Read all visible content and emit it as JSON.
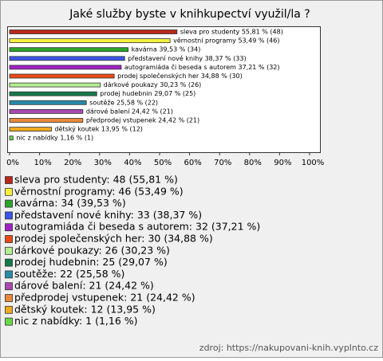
{
  "chart_data": {
    "type": "bar",
    "orientation": "horizontal",
    "title": "Jaké služby byste v knihkupectví využil/la ?",
    "categories": [
      "sleva pro studenty",
      "věrnostní programy",
      "kavárna",
      "představení nové knihy",
      "autogramiáda či beseda s autorem",
      "prodej společenských her",
      "dárkové poukazy",
      "prodej hudebnin",
      "soutěže",
      "dárové balení",
      "předprodej vstupenek",
      "dětský koutek",
      "nic z nabídky"
    ],
    "values": [
      55.81,
      53.49,
      39.53,
      38.37,
      37.21,
      34.88,
      30.23,
      29.07,
      25.58,
      24.42,
      24.42,
      13.95,
      1.16
    ],
    "value_labels": [
      "sleva pro studenty 55,81 % (48)",
      "věrnostní programy 53,49 % (46)",
      "kavárna 39,53 % (34)",
      "představení nové knihy 38,37 % (33)",
      "autogramiáda či beseda s autorem 37,21 % (32)",
      "prodej společenských her 34,88 % (30)",
      "dárkové poukazy 30,23 % (26)",
      "prodej hudebnin 29,07 % (25)",
      "soutěže 25,58 % (22)",
      "dárové balení 24,42 % (21)",
      "předprodej vstupenek 24,42 % (21)",
      "dětský koutek 13,95 % (12)",
      "nic z nabídky 1,16 % (1)"
    ],
    "legend_labels": [
      "sleva pro studenty: 48 (55,81 %)",
      "věrnostní programy: 46 (53,49 %)",
      "kavárna: 34 (39,53 %)",
      "představení nové knihy: 33 (38,37 %)",
      "autogramiáda či beseda s autorem: 32 (37,21 %)",
      "prodej společenských her: 30 (34,88 %)",
      "dárkové poukazy: 26 (30,23 %)",
      "prodej hudebnin: 25 (29,07 %)",
      "soutěže: 22 (25,58 %)",
      "dárové balení: 21 (24,42 %)",
      "předprodej vstupenek: 21 (24,42 %)",
      "dětský koutek: 12 (13,95 %)",
      "nic z nabídky: 1 (1,16 %)"
    ],
    "colors": [
      "#b8281c",
      "#f5f040",
      "#2aa52a",
      "#3a55e8",
      "#a022c4",
      "#e84a18",
      "#b4ee90",
      "#157a4a",
      "#2a8aa8",
      "#a848b0",
      "#e8883a",
      "#eeaa22",
      "#6ad848"
    ],
    "xlim": [
      0,
      100
    ],
    "xticks": [
      {
        "value": 0,
        "label": "0%"
      },
      {
        "value": 10,
        "label": "10%"
      },
      {
        "value": 20,
        "label": "20%"
      },
      {
        "value": 30,
        "label": "30%"
      },
      {
        "value": 40,
        "label": "40%"
      },
      {
        "value": 50,
        "label": "50%"
      },
      {
        "value": 60,
        "label": "60%"
      },
      {
        "value": 70,
        "label": "70%"
      },
      {
        "value": 80,
        "label": "80%"
      },
      {
        "value": 90,
        "label": "90%"
      },
      {
        "value": 100,
        "label": "100%"
      }
    ],
    "source": "zdroj: https://nakupovani-knih.vyplnto.cz"
  }
}
